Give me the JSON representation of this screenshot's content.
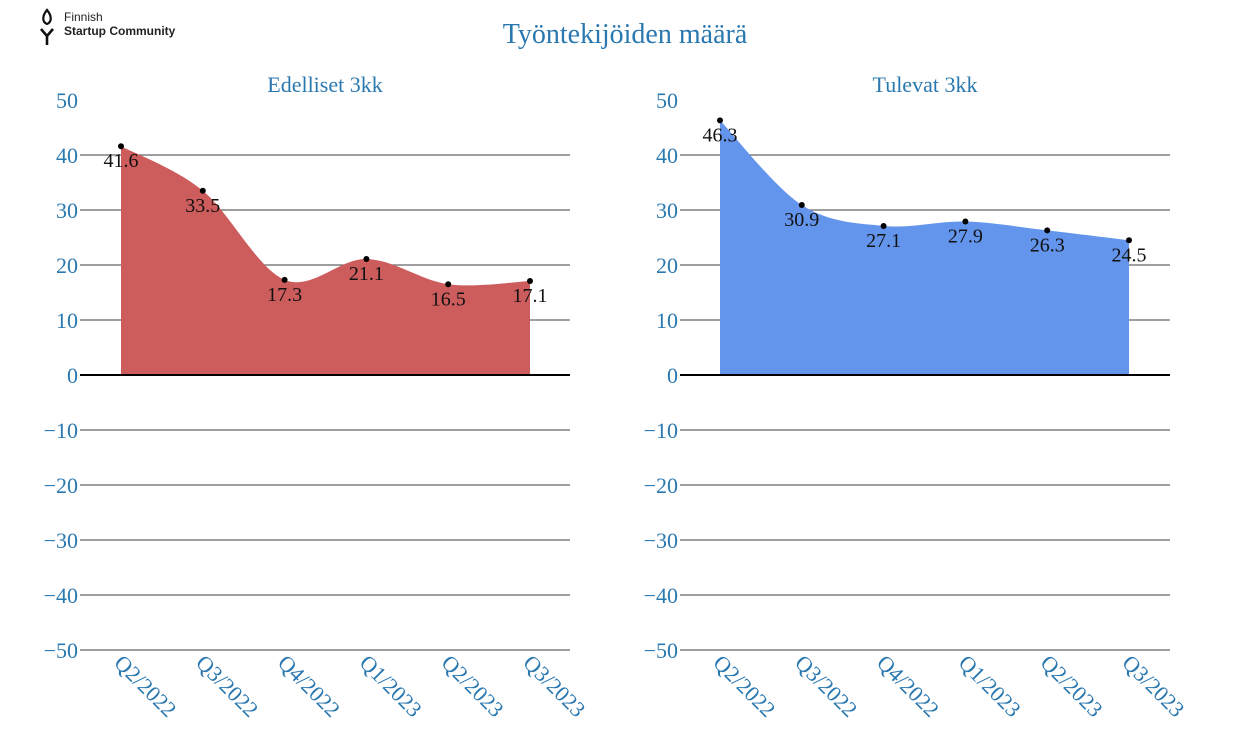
{
  "logo": {
    "line1": "Finnish",
    "line2": "Startup Community"
  },
  "title": "Työntekijöiden määrä",
  "chart_data": [
    {
      "type": "area",
      "title": "Edelliset 3kk",
      "categories": [
        "Q2/2022",
        "Q3/2022",
        "Q4/2022",
        "Q1/2023",
        "Q2/2023",
        "Q3/2023"
      ],
      "values": [
        41.6,
        33.5,
        17.3,
        21.1,
        16.5,
        17.1
      ],
      "ylim": [
        -50,
        50
      ],
      "yticks": [
        50,
        40,
        30,
        20,
        10,
        0,
        -10,
        -20,
        -30,
        -40,
        -50
      ],
      "color": "#cd5c5c",
      "grid": true,
      "legend": false
    },
    {
      "type": "area",
      "title": "Tulevat 3kk",
      "categories": [
        "Q2/2022",
        "Q3/2022",
        "Q4/2022",
        "Q1/2023",
        "Q2/2023",
        "Q3/2023"
      ],
      "values": [
        46.3,
        30.9,
        27.1,
        27.9,
        26.3,
        24.5
      ],
      "ylim": [
        -50,
        50
      ],
      "yticks": [
        50,
        40,
        30,
        20,
        10,
        0,
        -10,
        -20,
        -30,
        -40,
        -50
      ],
      "color": "#6495ed",
      "grid": true,
      "legend": false
    }
  ]
}
